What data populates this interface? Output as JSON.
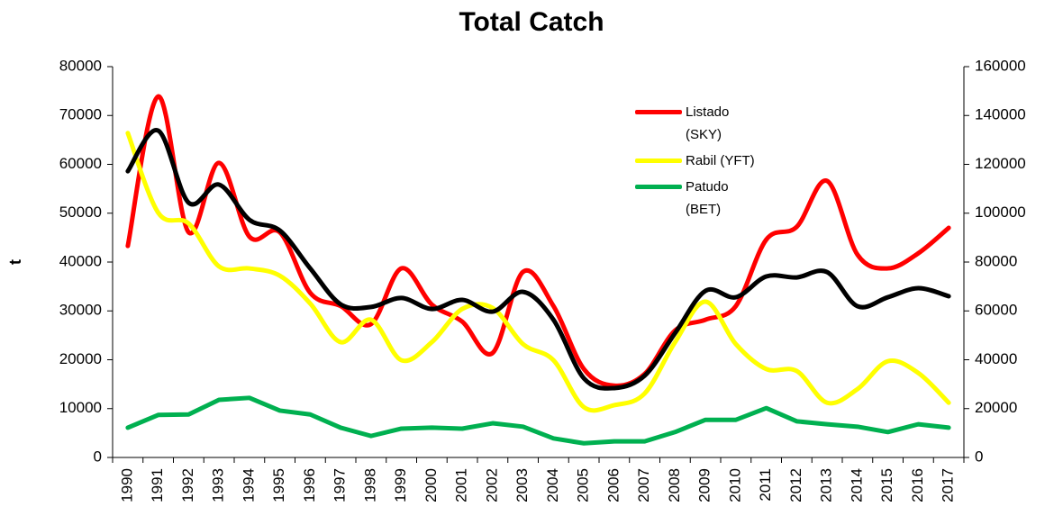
{
  "chart_data": {
    "type": "line",
    "title": "Total Catch",
    "y_label": "t",
    "categories": [
      "1990",
      "1991",
      "1992",
      "1993",
      "1994",
      "1995",
      "1996",
      "1997",
      "1998",
      "1999",
      "2000",
      "2001",
      "2002",
      "2003",
      "2004",
      "2005",
      "2006",
      "2007",
      "2008",
      "2009",
      "2010",
      "2011",
      "2012",
      "2013",
      "2014",
      "2015",
      "2016",
      "2017"
    ],
    "ylim": [
      0,
      80000
    ],
    "yticks": [
      0,
      10000,
      20000,
      30000,
      40000,
      50000,
      60000,
      70000,
      80000
    ],
    "y2lim": [
      0,
      160000
    ],
    "y2ticks": [
      0,
      20000,
      40000,
      60000,
      80000,
      100000,
      120000,
      140000,
      160000
    ],
    "legend": "upper-right",
    "series": [
      {
        "name": "Listado (SKY)",
        "color": "#ff0000",
        "smooth": true,
        "values": [
          43300,
          73900,
          46100,
          60300,
          45200,
          46100,
          33700,
          31000,
          27300,
          38700,
          31300,
          27800,
          21400,
          38000,
          31000,
          18100,
          14700,
          17100,
          26000,
          28200,
          31000,
          44600,
          47200,
          56600,
          41500,
          38700,
          41800,
          47000
        ]
      },
      {
        "name": "Rabil (YFT)",
        "color": "#ffff00",
        "smooth": true,
        "values": [
          66400,
          50100,
          47900,
          39100,
          38700,
          37200,
          31500,
          23600,
          28200,
          19900,
          23600,
          30400,
          30600,
          23200,
          19900,
          10300,
          10700,
          13100,
          23600,
          31900,
          23200,
          18100,
          17700,
          11200,
          14000,
          19700,
          17300,
          11200
        ]
      },
      {
        "name": "Patudo (BET)",
        "color": "#00b050",
        "smooth": false,
        "values": [
          6100,
          8700,
          8800,
          11800,
          12200,
          9600,
          8800,
          6100,
          4400,
          5900,
          6100,
          5900,
          7000,
          6300,
          3900,
          2900,
          3300,
          3300,
          5200,
          7700,
          7700,
          10100,
          7400,
          6800,
          6300,
          5200,
          6800,
          6100
        ]
      },
      {
        "color": "#000000",
        "smooth": true,
        "axis": "y2",
        "values": [
          117200,
          133800,
          104300,
          111700,
          97300,
          92900,
          77400,
          62700,
          61600,
          65300,
          60800,
          64500,
          59700,
          67800,
          56400,
          32400,
          28400,
          33500,
          50900,
          68200,
          65600,
          74100,
          73700,
          75900,
          61900,
          65600,
          69300,
          66000
        ]
      }
    ]
  }
}
